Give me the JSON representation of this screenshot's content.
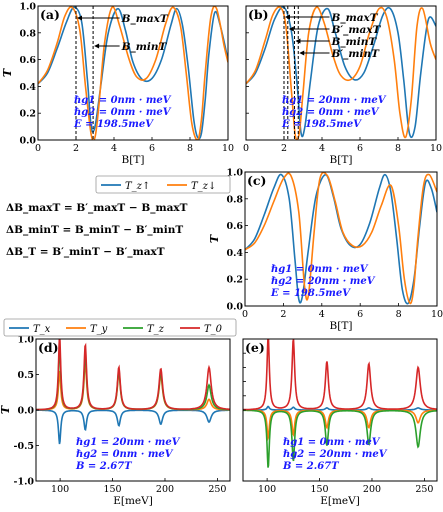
{
  "colors": {
    "blue": "#1f77b4",
    "orange": "#ff7f0e",
    "green": "#2ca02c",
    "red": "#d62728",
    "annotation": "#1a1aff"
  },
  "legend_top": [
    "T_z↑",
    "T_z↓"
  ],
  "legend_bottom": [
    "T_x",
    "T_y",
    "T_z",
    "T_0"
  ],
  "equations": [
    "ΔB_maxT = B′_maxT − B_maxT",
    "ΔB_minT = B_minT − B′_minT",
    "ΔB_T = B′_minT − B′_maxT"
  ],
  "chart_data": [
    {
      "id": "a",
      "type": "line",
      "panel_label": "(a)",
      "xlabel": "B[T]",
      "ylabel": "T",
      "xlim": [
        0,
        10
      ],
      "ylim": [
        0,
        1.0
      ],
      "xticks": [
        0,
        2,
        4,
        6,
        8,
        10
      ],
      "yticks": [
        0.0,
        0.2,
        0.4,
        0.6,
        0.8,
        1.0
      ],
      "series": [
        {
          "name": "T_z↑",
          "color": "blue",
          "x": [
            0,
            0.5,
            1,
            1.5,
            1.9,
            2.3,
            2.6,
            2.8,
            3.0,
            3.3,
            3.7,
            4.2,
            4.6,
            5.0,
            5.5,
            6.0,
            6.5,
            7.0,
            7.3,
            7.6,
            7.9,
            8.2,
            8.4,
            8.6,
            8.8,
            9.0,
            9.3,
            9.6,
            10
          ],
          "y": [
            0.42,
            0.5,
            0.68,
            0.88,
            0.99,
            0.88,
            0.45,
            0.1,
            0.1,
            0.4,
            0.8,
            0.98,
            0.82,
            0.58,
            0.45,
            0.46,
            0.6,
            0.86,
            0.98,
            0.86,
            0.55,
            0.15,
            0.02,
            0.05,
            0.3,
            0.65,
            0.95,
            0.85,
            0.6
          ]
        },
        {
          "name": "T_z↓",
          "color": "orange",
          "x": [
            0,
            0.5,
            1,
            1.4,
            1.8,
            2.2,
            2.5,
            2.8,
            3.0,
            3.2,
            3.5,
            3.9,
            4.3,
            4.8,
            5.2,
            5.7,
            6.2,
            6.7,
            7.1,
            7.5,
            7.8,
            8.1,
            8.4,
            8.6,
            8.8,
            9.1,
            9.4,
            9.8,
            10
          ],
          "y": [
            0.42,
            0.52,
            0.72,
            0.92,
            0.99,
            0.82,
            0.4,
            0.04,
            0.02,
            0.25,
            0.72,
            0.99,
            0.85,
            0.6,
            0.47,
            0.46,
            0.6,
            0.86,
            0.99,
            0.85,
            0.5,
            0.12,
            0.0,
            0.15,
            0.5,
            0.92,
            0.98,
            0.7,
            0.58
          ]
        }
      ],
      "annotations": [
        {
          "label": "B_maxT",
          "x": 2.0
        },
        {
          "label": "B_minT",
          "x": 2.9
        }
      ],
      "params": [
        "ℏg1 = 0nm · meV",
        "ℏg2 = 0nm · meV",
        "E = 198.5meV"
      ]
    },
    {
      "id": "b",
      "type": "line",
      "panel_label": "(b)",
      "xlabel": "B[T]",
      "ylabel": "",
      "xlim": [
        0,
        10
      ],
      "ylim": [
        0,
        1.0
      ],
      "xticks": [
        0,
        2,
        4,
        6,
        8,
        10
      ],
      "yticks": [],
      "series": [
        {
          "name": "T_z↑",
          "color": "blue",
          "x": [
            0,
            0.5,
            1,
            1.5,
            2.0,
            2.4,
            2.7,
            2.9,
            3.1,
            3.4,
            3.8,
            4.3,
            4.7,
            5.2,
            5.7,
            6.2,
            6.7,
            7.2,
            7.6,
            8.0,
            8.3,
            8.6,
            8.9,
            9.2,
            9.6,
            10
          ],
          "y": [
            0.42,
            0.5,
            0.68,
            0.9,
            0.99,
            0.8,
            0.4,
            0.05,
            0.1,
            0.45,
            0.85,
            0.98,
            0.8,
            0.55,
            0.45,
            0.5,
            0.7,
            0.93,
            0.98,
            0.8,
            0.45,
            0.05,
            0.1,
            0.5,
            0.9,
            0.85
          ]
        },
        {
          "name": "T_z↓",
          "color": "orange",
          "x": [
            0,
            0.5,
            1,
            1.4,
            1.8,
            2.1,
            2.4,
            2.6,
            2.8,
            3.0,
            3.3,
            3.7,
            4.1,
            4.6,
            5.0,
            5.5,
            6.0,
            6.5,
            7.0,
            7.4,
            7.8,
            8.1,
            8.4,
            8.7,
            9.0,
            9.3,
            9.7,
            10
          ],
          "y": [
            0.42,
            0.52,
            0.74,
            0.93,
            0.99,
            0.85,
            0.35,
            0.03,
            0.05,
            0.35,
            0.8,
            0.99,
            0.88,
            0.62,
            0.48,
            0.45,
            0.55,
            0.8,
            0.98,
            0.92,
            0.6,
            0.2,
            0.02,
            0.3,
            0.85,
            0.98,
            0.72,
            0.6
          ]
        }
      ],
      "annotations": [
        {
          "label": "B_maxT",
          "x": 2.0
        },
        {
          "label": "B′_maxT",
          "x": 2.2
        },
        {
          "label": "B_minT",
          "x": 2.55
        },
        {
          "label": "B′_minT",
          "x": 2.75
        }
      ],
      "params": [
        "ℏg1 = 20nm · meV",
        "ℏg2 = 0nm · meV",
        "E = 198.5meV"
      ]
    },
    {
      "id": "c",
      "type": "line",
      "panel_label": "(c)",
      "xlabel": "B[T]",
      "ylabel": "T",
      "xlim": [
        0,
        10
      ],
      "ylim": [
        0,
        1.0
      ],
      "xticks": [
        0,
        2,
        4,
        6,
        8,
        10
      ],
      "yticks": [
        0.0,
        0.2,
        0.4,
        0.6,
        0.8,
        1.0
      ],
      "series": [
        {
          "name": "T_z↑",
          "color": "blue",
          "x": [
            0,
            0.5,
            1,
            1.5,
            1.9,
            2.3,
            2.6,
            2.8,
            3.0,
            3.3,
            3.7,
            4.2,
            4.6,
            5.0,
            5.5,
            6.0,
            6.5,
            7.0,
            7.3,
            7.6,
            7.9,
            8.2,
            8.5,
            8.8,
            9.1,
            9.4,
            9.7,
            10
          ],
          "y": [
            0.42,
            0.5,
            0.68,
            0.88,
            0.98,
            0.8,
            0.35,
            0.05,
            0.08,
            0.42,
            0.82,
            0.98,
            0.82,
            0.58,
            0.45,
            0.46,
            0.62,
            0.88,
            0.98,
            0.85,
            0.5,
            0.12,
            0.02,
            0.2,
            0.6,
            0.92,
            0.88,
            0.7
          ]
        },
        {
          "name": "T_z↓",
          "color": "orange",
          "x": [
            0,
            0.5,
            1,
            1.5,
            2.0,
            2.4,
            2.8,
            3.1,
            3.3,
            3.6,
            3.9,
            4.3,
            4.7,
            5.1,
            5.6,
            6.1,
            6.6,
            7.1,
            7.6,
            8.0,
            8.3,
            8.6,
            8.8,
            9.0,
            9.3,
            9.6,
            10
          ],
          "y": [
            0.42,
            0.47,
            0.6,
            0.78,
            0.95,
            0.97,
            0.7,
            0.15,
            0.08,
            0.55,
            0.95,
            0.97,
            0.78,
            0.55,
            0.45,
            0.45,
            0.55,
            0.75,
            0.9,
            0.6,
            0.2,
            0.02,
            0.15,
            0.5,
            0.9,
            0.98,
            0.85
          ]
        }
      ],
      "params": [
        "ℏg1 = 0nm · meV",
        "ℏg2 = 20nm · meV",
        "E = 198.5meV"
      ]
    },
    {
      "id": "d",
      "type": "line",
      "panel_label": "(d)",
      "xlabel": "E[meV]",
      "ylabel": "T",
      "xlim": [
        77,
        262
      ],
      "ylim": [
        -1.0,
        1.0
      ],
      "xticks": [
        100,
        150,
        200,
        250
      ],
      "yticks": [
        -1.0,
        -0.5,
        0.0,
        0.5,
        1.0
      ],
      "peaks": [
        {
          "e": 99.5,
          "t0": 1.05,
          "tx": -0.48,
          "ty": 0.55,
          "tz": 0.9
        },
        {
          "e": 124,
          "t0": 0.92,
          "tx": -0.28,
          "ty": 0.68,
          "tz": 0.8
        },
        {
          "e": 156,
          "t0": 0.6,
          "tx": -0.22,
          "ty": 0.52,
          "tz": 0.55
        },
        {
          "e": 196,
          "t0": 0.58,
          "tx": -0.2,
          "ty": 0.48,
          "tz": 0.52
        },
        {
          "e": 242,
          "t0": 0.6,
          "tx": -0.17,
          "ty": 0.15,
          "tz": 0.35
        }
      ],
      "params": [
        "ℏg1 = 20nm · meV",
        "ℏg2 = 0nm · meV",
        "B = 2.67T"
      ]
    },
    {
      "id": "e",
      "type": "line",
      "panel_label": "(e)",
      "xlabel": "E[meV]",
      "ylabel": "",
      "xlim": [
        77,
        262
      ],
      "ylim": [
        -1.0,
        1.0
      ],
      "xticks": [
        100,
        150,
        200,
        250
      ],
      "yticks": [],
      "peaks": [
        {
          "e": 101,
          "t0": 1.05,
          "tx": 0.05,
          "ty": -0.4,
          "tz": -0.82
        },
        {
          "e": 125,
          "t0": 1.0,
          "tx": 0.04,
          "ty": -0.35,
          "tz": -0.72
        },
        {
          "e": 157,
          "t0": 0.68,
          "tx": 0.03,
          "ty": -0.25,
          "tz": -0.5
        },
        {
          "e": 197,
          "t0": 0.65,
          "tx": 0.03,
          "ty": -0.25,
          "tz": -0.48
        },
        {
          "e": 244,
          "t0": 0.6,
          "tx": 0.03,
          "ty": -0.18,
          "tz": -0.52
        }
      ],
      "params": [
        "ℏg1 = 0nm · meV",
        "ℏg2 = 20nm · meV",
        "B = 2.67T"
      ]
    }
  ]
}
